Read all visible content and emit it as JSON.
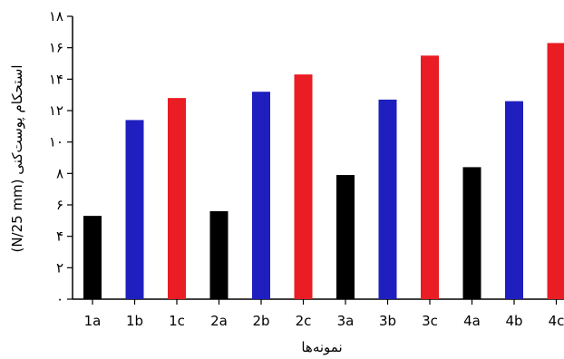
{
  "chart_data": {
    "type": "bar",
    "title": "",
    "xlabel": "نمونه‌ها",
    "ylabel": "(N/25 mm) استحکام پوست‌کنی",
    "ylim": [
      0,
      18
    ],
    "yticks": [
      0,
      2,
      4,
      6,
      8,
      10,
      12,
      14,
      16,
      18
    ],
    "ytick_labels": [
      "۰",
      "۲",
      "۴",
      "۶",
      "۸",
      "۱۰",
      "۱۲",
      "۱۴",
      "۱۶",
      "۱۸"
    ],
    "categories": [
      "1a",
      "1b",
      "1c",
      "2a",
      "2b",
      "2c",
      "3a",
      "3b",
      "3c",
      "4a",
      "4b",
      "4c"
    ],
    "values": [
      5.3,
      11.4,
      12.8,
      5.6,
      13.2,
      14.3,
      7.9,
      12.7,
      15.5,
      8.4,
      12.6,
      16.3
    ],
    "bar_colors": [
      "#000000",
      "#1f1fbf",
      "#ea1c24",
      "#000000",
      "#1f1fbf",
      "#ea1c24",
      "#000000",
      "#1f1fbf",
      "#ea1c24",
      "#000000",
      "#1f1fbf",
      "#ea1c24"
    ],
    "grid": false,
    "legend": "none"
  }
}
